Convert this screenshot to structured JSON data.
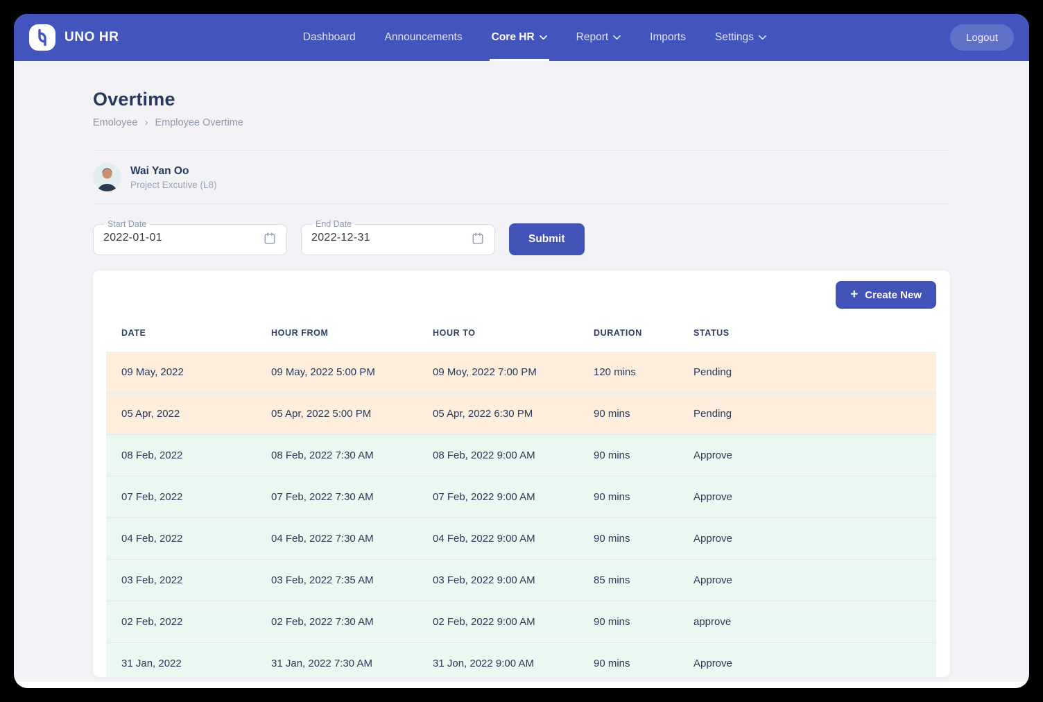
{
  "brand": {
    "name": "UNO HR",
    "logo_icon": "uno-logo"
  },
  "nav": {
    "items": [
      {
        "label": "Dashboard",
        "active": false,
        "dropdown": false
      },
      {
        "label": "Announcements",
        "active": false,
        "dropdown": false
      },
      {
        "label": "Core HR",
        "active": true,
        "dropdown": true
      },
      {
        "label": "Report",
        "active": false,
        "dropdown": true
      },
      {
        "label": "Imports",
        "active": false,
        "dropdown": false
      },
      {
        "label": "Settings",
        "active": false,
        "dropdown": true
      }
    ],
    "logout_label": "Logout"
  },
  "page": {
    "title": "Overtime",
    "breadcrumb": {
      "items": [
        "Emoloyee",
        "Employee Overtime"
      ],
      "separator": "›"
    }
  },
  "profile": {
    "name": "Wai Yan Oo",
    "role": "Project Excutive (L8)"
  },
  "filters": {
    "start_date": {
      "label": "Start Date",
      "value": "2022-01-01"
    },
    "end_date": {
      "label": "End Date",
      "value": "2022-12-31"
    },
    "submit_label": "Submit"
  },
  "overtime_table": {
    "create_button": {
      "icon": "+",
      "label": "Create New"
    },
    "columns": [
      "DATE",
      "HOUR FROM",
      "HOUR TO",
      "DURATION",
      "STATUS"
    ],
    "rows": [
      {
        "date": "09 May, 2022",
        "hour_from": "09 May, 2022 5:00 PM",
        "hour_to": "09 Moy, 2022 7:00 PM",
        "duration": "120 mins",
        "status": "Pending",
        "tone": "pending"
      },
      {
        "date": "05 Apr, 2022",
        "hour_from": "05 Apr, 2022 5:00 PM",
        "hour_to": "05 Apr, 2022 6:30 PM",
        "duration": "90 mins",
        "status": "Pending",
        "tone": "pending"
      },
      {
        "date": "08 Feb, 2022",
        "hour_from": "08 Feb, 2022 7:30 AM",
        "hour_to": "08 Feb, 2022 9:00 AM",
        "duration": "90 mins",
        "status": "Approve",
        "tone": "approved"
      },
      {
        "date": "07 Feb, 2022",
        "hour_from": "07 Feb, 2022 7:30 AM",
        "hour_to": "07 Feb, 2022 9:00 AM",
        "duration": "90 mins",
        "status": "Approve",
        "tone": "approved"
      },
      {
        "date": "04 Feb, 2022",
        "hour_from": "04 Feb, 2022 7:30 AM",
        "hour_to": "04 Feb, 2022 9:00 AM",
        "duration": "90 mins",
        "status": "Approve",
        "tone": "approved"
      },
      {
        "date": "03 Feb, 2022",
        "hour_from": "03 Feb, 2022 7:35 AM",
        "hour_to": "03 Feb, 2022 9:00 AM",
        "duration": "85 mins",
        "status": "Approve",
        "tone": "approved"
      },
      {
        "date": "02 Feb, 2022",
        "hour_from": "02 Feb, 2022 7:30 AM",
        "hour_to": "02 Feb, 2022 9:00 AM",
        "duration": "90 mins",
        "status": "approve",
        "tone": "approved"
      },
      {
        "date": "31 Jan, 2022",
        "hour_from": "31 Jan, 2022 7:30 AM",
        "hour_to": "31 Jon, 2022 9:00 AM",
        "duration": "90 mins",
        "status": "Approve",
        "tone": "approved"
      }
    ]
  },
  "colors": {
    "navbar": "#4355bd",
    "accent": "#4253b8",
    "pending_row": "#fdeedd",
    "approved_row": "#ebf7f1",
    "page_bg": "#f3f3f7",
    "text_dark": "#24395b",
    "text_muted": "#8f99ab"
  }
}
